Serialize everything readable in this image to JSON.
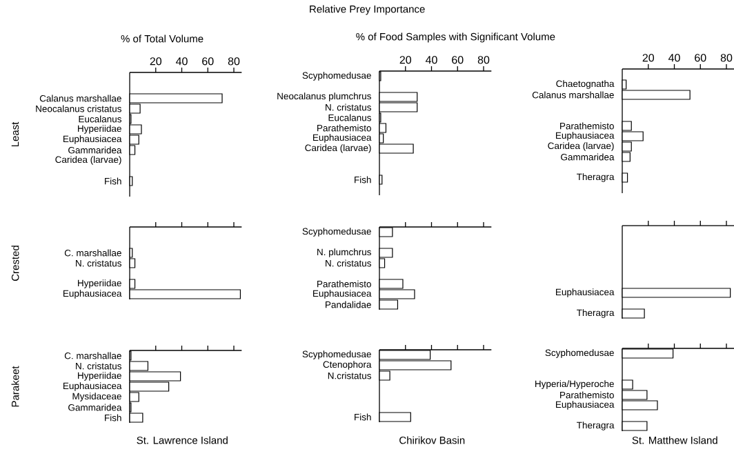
{
  "chart_data": [
    {
      "type": "bar",
      "orientation": "horizontal",
      "xlabel": "% of Total Volume",
      "ylabel": "Least",
      "categories": [
        null,
        null,
        "Calanus marshallae",
        "Neocalanus cristatus",
        "Eucalanus",
        "Hyperiidae",
        "Euphausiacea",
        "Gammaridea",
        "Caridea (larvae)",
        null,
        "Fish",
        null
      ],
      "values": [
        null,
        null,
        71,
        8,
        1,
        9,
        7,
        4,
        null,
        null,
        2,
        null
      ],
      "color": "#ffffff",
      "xlim": [
        0,
        86
      ],
      "xticks": [
        20,
        40,
        60,
        80
      ]
    },
    {
      "type": "bar",
      "orientation": "horizontal",
      "title": "Relative Prey Importance",
      "xlabel": "% of Food Samples with Significant Volume",
      "categories": [
        "Scyphomedusae",
        null,
        "Neocalanus plumchrus",
        "N. cristatus",
        "Eucalanus",
        "Parathemisto",
        "Euphausiacea",
        "Caridea (larvae)",
        null,
        null,
        "Fish",
        null
      ],
      "values": [
        1,
        null,
        29,
        29,
        1,
        5,
        3,
        26,
        null,
        null,
        2,
        null
      ],
      "color": "#ffffff",
      "xlim": [
        0,
        86
      ],
      "xticks": [
        20,
        40,
        60,
        80
      ]
    },
    {
      "type": "bar",
      "orientation": "horizontal",
      "categories": [
        null,
        "Chaetognatha",
        "Calanus marshallae",
        null,
        null,
        "Parathemisto",
        "Euphausiacea",
        "Caridea (larvae)",
        "Gammaridea",
        null,
        "Theragra",
        null
      ],
      "values": [
        null,
        3,
        52,
        null,
        null,
        7,
        16,
        7,
        6,
        null,
        4,
        null
      ],
      "color": "#ffffff",
      "xlim": [
        0,
        86
      ],
      "xticks": [
        20,
        40,
        60,
        80
      ]
    },
    {
      "type": "bar",
      "orientation": "horizontal",
      "ylabel": "Crested",
      "categories": [
        null,
        null,
        "C. marshallae",
        "N. cristatus",
        null,
        "Hyperiidae",
        "Euphausiacea"
      ],
      "values": [
        null,
        null,
        2,
        4,
        null,
        4,
        85
      ],
      "color": "#ffffff",
      "xlim": [
        0,
        86
      ],
      "xticks": [
        20,
        40,
        60,
        80
      ],
      "tick_labels": "y"
    },
    {
      "type": "bar",
      "orientation": "horizontal",
      "categories": [
        "Scyphomedusae",
        null,
        "N. plumchrus",
        "N. cristatus",
        null,
        "Parathemisto",
        "Euphausiacea",
        "Pandalidae"
      ],
      "values": [
        10,
        null,
        10,
        4,
        null,
        18,
        27,
        14
      ],
      "color": "#ffffff",
      "xlim": [
        0,
        86
      ],
      "xticks": [
        20,
        40,
        60,
        80
      ],
      "tick_labels": "y"
    },
    {
      "type": "bar",
      "orientation": "horizontal",
      "categories": [
        null,
        null,
        null,
        null,
        null,
        null,
        "Euphausiacea",
        null,
        "Theragra"
      ],
      "values": [
        null,
        null,
        null,
        null,
        null,
        null,
        83,
        null,
        17
      ],
      "color": "#ffffff",
      "xlim": [
        0,
        86
      ],
      "xticks": [
        20,
        40,
        60,
        80
      ],
      "tick_labels": "y"
    },
    {
      "type": "bar",
      "orientation": "horizontal",
      "ylabel": "Parakeet",
      "annotations": [
        "St. Lawrence Island"
      ],
      "categories": [
        "C. marshallae",
        "N. cristatus",
        "Hyperiidae",
        "Euphausiacea",
        "Mysidaceae",
        "Gammaridea",
        "Fish"
      ],
      "values": [
        1,
        14,
        39,
        30,
        7,
        1,
        10
      ],
      "color": "#ffffff",
      "xlim": [
        0,
        86
      ],
      "xticks": [
        20,
        40,
        60,
        80
      ],
      "tick_labels": "y"
    },
    {
      "type": "bar",
      "orientation": "horizontal",
      "annotations": [
        "Chirikov Basin"
      ],
      "categories": [
        "Scyphomedusae",
        "Ctenophora",
        "N.cristatus",
        null,
        null,
        null,
        "Fish"
      ],
      "values": [
        39,
        55,
        8,
        null,
        null,
        null,
        24
      ],
      "color": "#ffffff",
      "xlim": [
        0,
        86
      ],
      "xticks": [
        20,
        40,
        60,
        80
      ],
      "tick_labels": "y"
    },
    {
      "type": "bar",
      "orientation": "horizontal",
      "annotations": [
        "St. Matthew Island"
      ],
      "categories": [
        "Scyphomedusae",
        null,
        null,
        "Hyperia/Hyperoche",
        "Parathemisto",
        "Euphausiacea",
        null,
        "Theragra"
      ],
      "values": [
        39,
        null,
        null,
        8,
        19,
        27,
        null,
        19
      ],
      "color": "#ffffff",
      "xlim": [
        0,
        86
      ],
      "xticks": [
        20,
        40,
        60,
        80
      ],
      "tick_labels": "y"
    }
  ]
}
